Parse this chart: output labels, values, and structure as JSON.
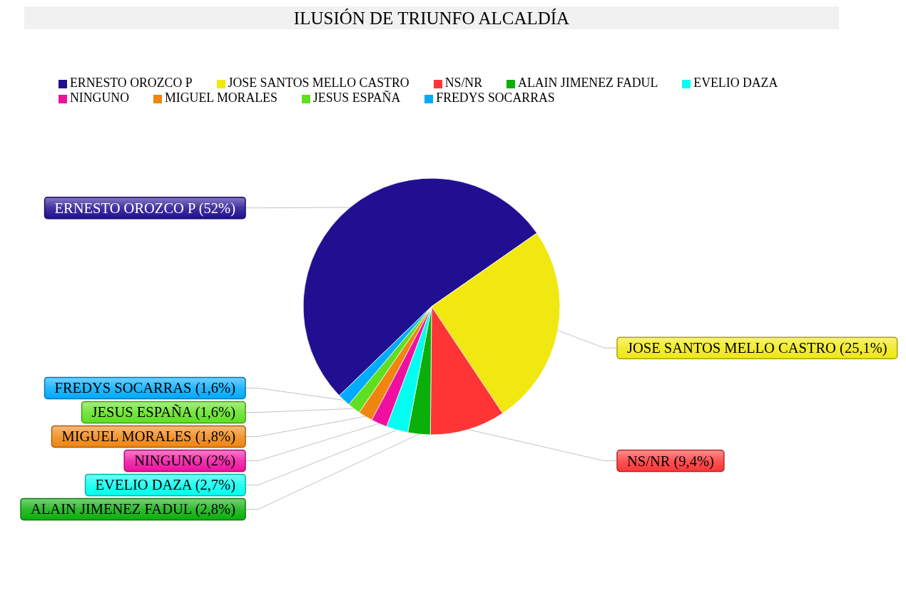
{
  "chart_data": {
    "type": "pie",
    "title": "ILUSIÓN DE TRIUNFO ALCALDÍA",
    "categories": [
      "ERNESTO OROZCO P",
      "JOSE SANTOS MELLO CASTRO",
      "NS/NR",
      "ALAIN JIMENEZ FADUL",
      "EVELIO DAZA",
      "NINGUNO",
      "MIGUEL MORALES",
      "JESUS ESPAÑA",
      "FREDYS SOCARRAS"
    ],
    "values": [
      52,
      25.1,
      9.4,
      2.8,
      2.7,
      2,
      1.8,
      1.6,
      1.6
    ],
    "colors": [
      "#200f90",
      "#f0e810",
      "#ff3535",
      "#0aaf0a",
      "#00fff0",
      "#f010a0",
      "#f08510",
      "#5ee020",
      "#00aaff"
    ],
    "value_labels": [
      "(52%)",
      "(25,1%)",
      "(9,4%)",
      "(2,8%)",
      "(2,7%)",
      "(2%)",
      "(1,8%)",
      "(1,6%)",
      "(1,6%)"
    ],
    "legend": "top"
  }
}
